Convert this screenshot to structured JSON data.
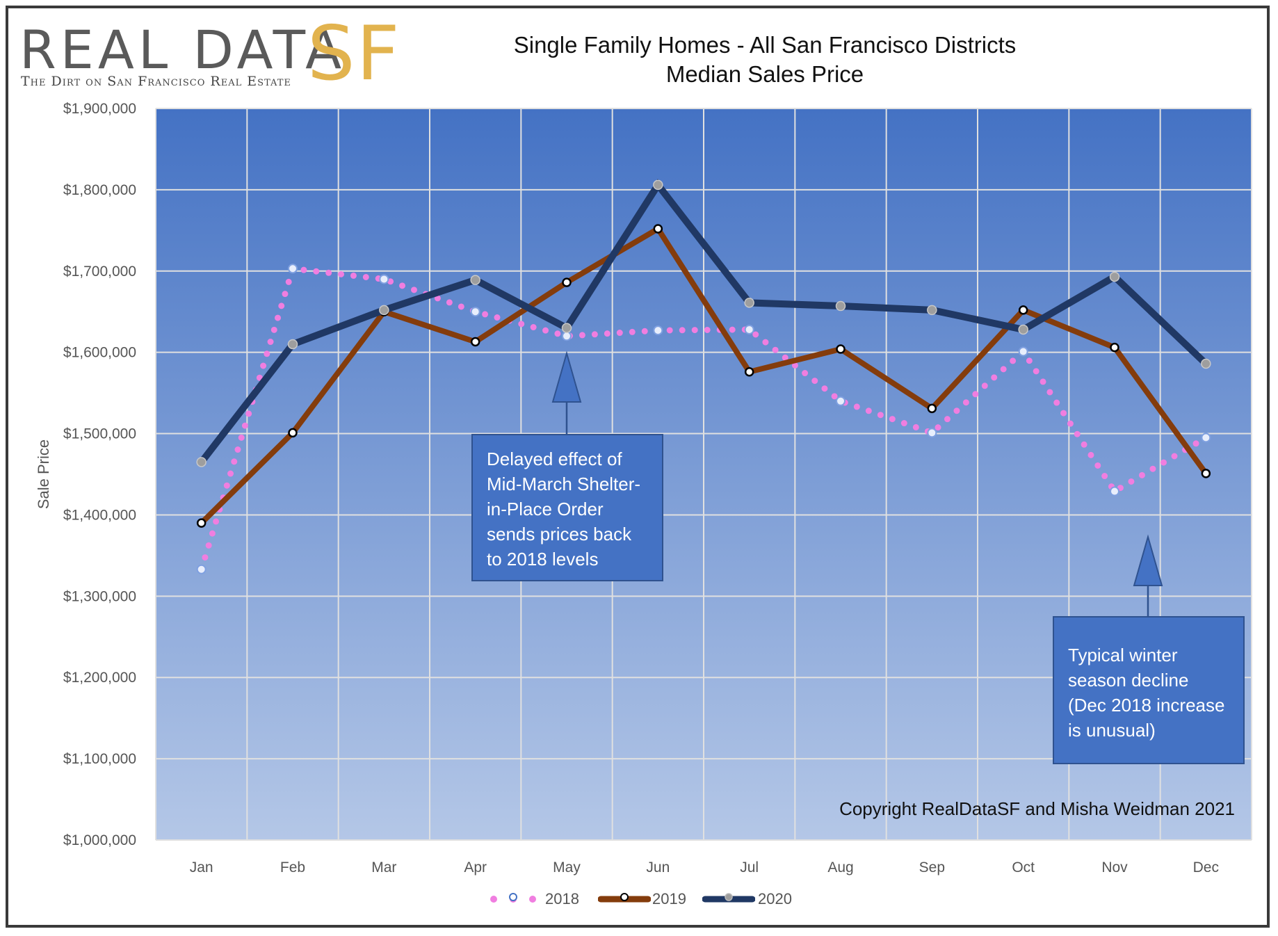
{
  "logo": {
    "main": "REAL DATA",
    "accent": "SF",
    "tagline": "The Dirt on San Francisco Real Estate"
  },
  "title_lines": [
    "Single Family Homes - All San Francisco Districts",
    "Median Sales Price"
  ],
  "callouts": {
    "shelter": "Delayed effect of Mid-March Shelter-in-Place Order sends prices back to 2018 levels",
    "winter": "Typical winter season decline (Dec 2018 increase is unusual)"
  },
  "copyright": "Copyright RealDataSF and Misha Weidman 2021",
  "colors": {
    "s2018": "#f07ee0",
    "s2019": "#843c0c",
    "s2020": "#203864",
    "plot_top": "#4472c4",
    "plot_bottom": "#b4c7e7",
    "grid": "#e0e0e0",
    "callout": "#4472c4"
  },
  "chart_data": {
    "type": "line",
    "title": "Single Family Homes - All San Francisco Districts Median Sales Price",
    "ylabel": "Sale Price",
    "xlabel": "",
    "ylim": [
      1000000,
      1900000
    ],
    "ytick_step": 100000,
    "ytick_labels": [
      "$1,000,000",
      "$1,100,000",
      "$1,200,000",
      "$1,300,000",
      "$1,400,000",
      "$1,500,000",
      "$1,600,000",
      "$1,700,000",
      "$1,800,000",
      "$1,900,000"
    ],
    "categories": [
      "Jan",
      "Feb",
      "Mar",
      "Apr",
      "May",
      "Jun",
      "Jul",
      "Aug",
      "Sep",
      "Oct",
      "Nov",
      "Dec"
    ],
    "grid": true,
    "legend_position": "bottom",
    "series": [
      {
        "name": "2018",
        "style": "dotted",
        "values": [
          1333000,
          1703000,
          1690000,
          1650000,
          1620000,
          1627000,
          1628000,
          1540000,
          1501000,
          1601000,
          1429000,
          1495000
        ]
      },
      {
        "name": "2019",
        "style": "solid",
        "values": [
          1390000,
          1501000,
          1650000,
          1613000,
          1686000,
          1752000,
          1576000,
          1604000,
          1531000,
          1652000,
          1606000,
          1451000
        ]
      },
      {
        "name": "2020",
        "style": "solid",
        "values": [
          1465000,
          1610000,
          1652000,
          1689000,
          1630000,
          1806000,
          1661000,
          1657000,
          1652000,
          1628000,
          1693000,
          1586000
        ]
      }
    ]
  }
}
